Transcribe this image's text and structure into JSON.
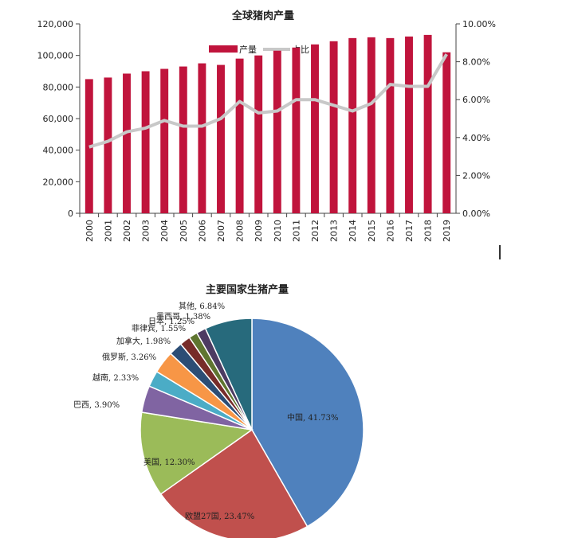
{
  "chart_data": [
    {
      "type": "bar",
      "title": "全球猪肉产量",
      "categories": [
        "2000",
        "2001",
        "2002",
        "2003",
        "2004",
        "2005",
        "2006",
        "2007",
        "2008",
        "2009",
        "2010",
        "2011",
        "2012",
        "2013",
        "2014",
        "2015",
        "2016",
        "2017",
        "2018",
        "2019"
      ],
      "series": [
        {
          "name": "产量",
          "type": "bar",
          "axis": "left",
          "color": "#c0143c",
          "values": [
            85000,
            86000,
            88500,
            90000,
            91500,
            93000,
            95000,
            94000,
            98000,
            100000,
            103000,
            105000,
            107000,
            109000,
            111000,
            111500,
            111000,
            112000,
            113000,
            102000
          ]
        },
        {
          "name": "占比",
          "type": "line",
          "axis": "right",
          "color": "#c8c8c8",
          "values": [
            3.5,
            3.8,
            4.3,
            4.5,
            4.9,
            4.6,
            4.6,
            5.0,
            5.9,
            5.3,
            5.4,
            6.0,
            6.0,
            5.7,
            5.4,
            5.8,
            6.8,
            6.7,
            6.7,
            8.4
          ]
        }
      ],
      "y_left": {
        "lim": [
          0,
          120000
        ],
        "ticks": [
          "0",
          "20,000",
          "40,000",
          "60,000",
          "80,000",
          "100,000",
          "120,000"
        ]
      },
      "y_right": {
        "lim": [
          0,
          10
        ],
        "ticks": [
          "0.00%",
          "2.00%",
          "4.00%",
          "6.00%",
          "8.00%",
          "10.00%"
        ]
      },
      "legend": {
        "position": "top",
        "items": [
          "产量",
          "占比"
        ]
      }
    },
    {
      "type": "pie",
      "title": "主要国家生猪产量",
      "slices": [
        {
          "label": "中国, 41.73%",
          "name": "中国",
          "value": 41.73,
          "color": "#4f81bd"
        },
        {
          "label": "欧盟27国, 23.47%",
          "name": "欧盟27国",
          "value": 23.47,
          "color": "#c0504d"
        },
        {
          "label": "美国, 12.30%",
          "name": "美国",
          "value": 12.3,
          "color": "#9bbb59"
        },
        {
          "label": "巴西, 3.90%",
          "name": "巴西",
          "value": 3.9,
          "color": "#8064a2"
        },
        {
          "label": "越南, 2.33%",
          "name": "越南",
          "value": 2.33,
          "color": "#4bacc6"
        },
        {
          "label": "俄罗斯, 3.26%",
          "name": "俄罗斯",
          "value": 3.26,
          "color": "#f79646"
        },
        {
          "label": "加拿大, 1.98%",
          "name": "加拿大",
          "value": 1.98,
          "color": "#2c4d75"
        },
        {
          "label": "菲律宾, 1.55%",
          "name": "菲律宾",
          "value": 1.55,
          "color": "#772c2a"
        },
        {
          "label": "日本, 1.25%",
          "name": "日本",
          "value": 1.25,
          "color": "#5f7530"
        },
        {
          "label": "墨西哥, 1.38%",
          "name": "墨西哥",
          "value": 1.38,
          "color": "#4d3b62"
        },
        {
          "label": "其他, 6.84%",
          "name": "其他",
          "value": 6.84,
          "color": "#276a7c"
        }
      ]
    }
  ]
}
